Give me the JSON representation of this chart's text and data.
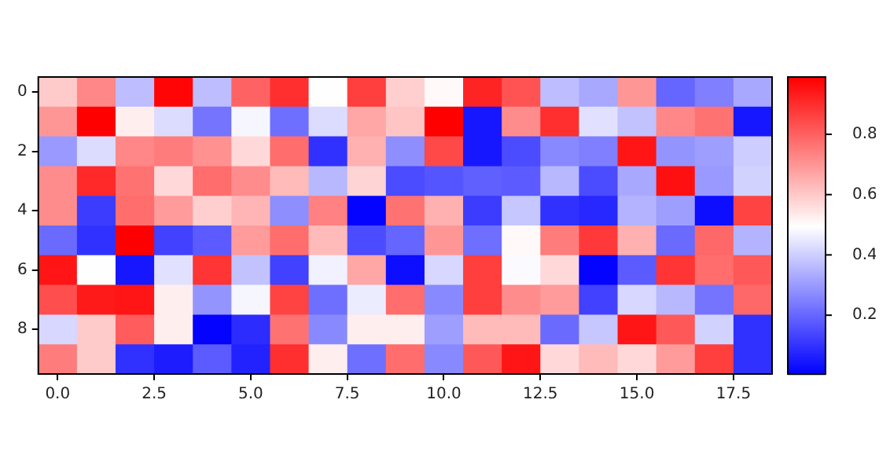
{
  "chart_data": {
    "type": "heatmap",
    "x": [
      0,
      1,
      2,
      3,
      4,
      5,
      6,
      7,
      8,
      9,
      10,
      11,
      12,
      13,
      14,
      15,
      16,
      17,
      18
    ],
    "xlim": [
      -0.5,
      18.5
    ],
    "xticks": [
      {
        "value": 0,
        "label": "0.0"
      },
      {
        "value": 2.5,
        "label": "2.5"
      },
      {
        "value": 5,
        "label": "5.0"
      },
      {
        "value": 7.5,
        "label": "7.5"
      },
      {
        "value": 10,
        "label": "10.0"
      },
      {
        "value": 12.5,
        "label": "12.5"
      },
      {
        "value": 15,
        "label": "15.0"
      },
      {
        "value": 17.5,
        "label": "17.5"
      }
    ],
    "y_categories": [
      "0",
      null,
      "2",
      null,
      "4",
      null,
      "6",
      null,
      "8",
      null
    ],
    "cells": [
      [
        0.6,
        0.73,
        0.37,
        0.98,
        0.37,
        0.8,
        0.9,
        0.5,
        0.87,
        0.59,
        0.51,
        0.92,
        0.83,
        0.37,
        0.33,
        0.7,
        0.2,
        0.25,
        0.33
      ],
      [
        0.7,
        0.99,
        0.53,
        0.43,
        0.23,
        0.48,
        0.22,
        0.43,
        0.67,
        0.61,
        0.99,
        0.05,
        0.72,
        0.9,
        0.44,
        0.38,
        0.73,
        0.77,
        0.05
      ],
      [
        0.3,
        0.43,
        0.73,
        0.75,
        0.71,
        0.57,
        0.78,
        0.1,
        0.65,
        0.28,
        0.85,
        0.05,
        0.15,
        0.27,
        0.25,
        0.95,
        0.29,
        0.31,
        0.4
      ],
      [
        0.72,
        0.91,
        0.77,
        0.57,
        0.78,
        0.72,
        0.63,
        0.36,
        0.58,
        0.15,
        0.17,
        0.19,
        0.18,
        0.36,
        0.15,
        0.33,
        0.96,
        0.3,
        0.41
      ],
      [
        0.72,
        0.12,
        0.78,
        0.69,
        0.59,
        0.64,
        0.28,
        0.74,
        0.01,
        0.77,
        0.65,
        0.12,
        0.39,
        0.1,
        0.08,
        0.35,
        0.31,
        0.03,
        0.86
      ],
      [
        0.21,
        0.1,
        0.99,
        0.13,
        0.18,
        0.69,
        0.78,
        0.63,
        0.15,
        0.2,
        0.7,
        0.22,
        0.51,
        0.75,
        0.88,
        0.65,
        0.21,
        0.79,
        0.35
      ],
      [
        0.95,
        0.5,
        0.05,
        0.44,
        0.89,
        0.38,
        0.13,
        0.47,
        0.67,
        0.03,
        0.42,
        0.87,
        0.49,
        0.57,
        0.01,
        0.18,
        0.89,
        0.78,
        0.82
      ],
      [
        0.84,
        0.94,
        0.95,
        0.53,
        0.29,
        0.48,
        0.86,
        0.22,
        0.46,
        0.78,
        0.27,
        0.87,
        0.72,
        0.69,
        0.13,
        0.42,
        0.36,
        0.23,
        0.79
      ],
      [
        0.42,
        0.6,
        0.81,
        0.53,
        0.01,
        0.09,
        0.77,
        0.27,
        0.53,
        0.53,
        0.31,
        0.63,
        0.63,
        0.21,
        0.39,
        0.95,
        0.82,
        0.41,
        0.1
      ],
      [
        0.75,
        0.6,
        0.1,
        0.06,
        0.18,
        0.07,
        0.9,
        0.53,
        0.22,
        0.78,
        0.27,
        0.82,
        0.95,
        0.57,
        0.63,
        0.57,
        0.69,
        0.87,
        0.1
      ]
    ],
    "clim": [
      0.005,
      0.99
    ],
    "cticks": [
      0.2,
      0.4,
      0.6,
      0.8
    ]
  }
}
